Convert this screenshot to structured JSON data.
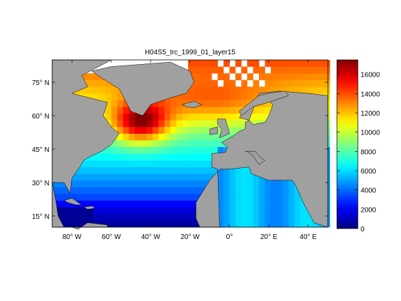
{
  "title": "H04S5_trc_1999_01_layer15",
  "map": {
    "lon_range": [
      -90,
      50
    ],
    "lat_range": [
      10,
      85
    ],
    "lon_ticks": [
      {
        "value": -80,
        "label": "80° W"
      },
      {
        "value": -60,
        "label": "60° W"
      },
      {
        "value": -40,
        "label": "40° W"
      },
      {
        "value": -20,
        "label": "20° W"
      },
      {
        "value": 0,
        "label": "0°"
      },
      {
        "value": 20,
        "label": "20° E"
      },
      {
        "value": 40,
        "label": "40° E"
      }
    ],
    "lat_ticks": [
      {
        "value": 15,
        "label": "15° N"
      },
      {
        "value": 30,
        "label": "30° N"
      },
      {
        "value": 45,
        "label": "45° N"
      },
      {
        "value": 60,
        "label": "60° N"
      },
      {
        "value": 75,
        "label": "75° N"
      }
    ],
    "land_color": "#a0a0a0",
    "nodata_color": "#ffffff"
  },
  "colorbar": {
    "min": 0,
    "max": 17500,
    "ticks": [
      {
        "value": 0,
        "label": "0"
      },
      {
        "value": 2000,
        "label": "2000"
      },
      {
        "value": 4000,
        "label": "4000"
      },
      {
        "value": 6000,
        "label": "6000"
      },
      {
        "value": 8000,
        "label": "8000"
      },
      {
        "value": 10000,
        "label": "10000"
      },
      {
        "value": 12000,
        "label": "12000"
      },
      {
        "value": 14000,
        "label": "14000"
      },
      {
        "value": 16000,
        "label": "16000"
      }
    ],
    "colormap": "jet"
  }
}
